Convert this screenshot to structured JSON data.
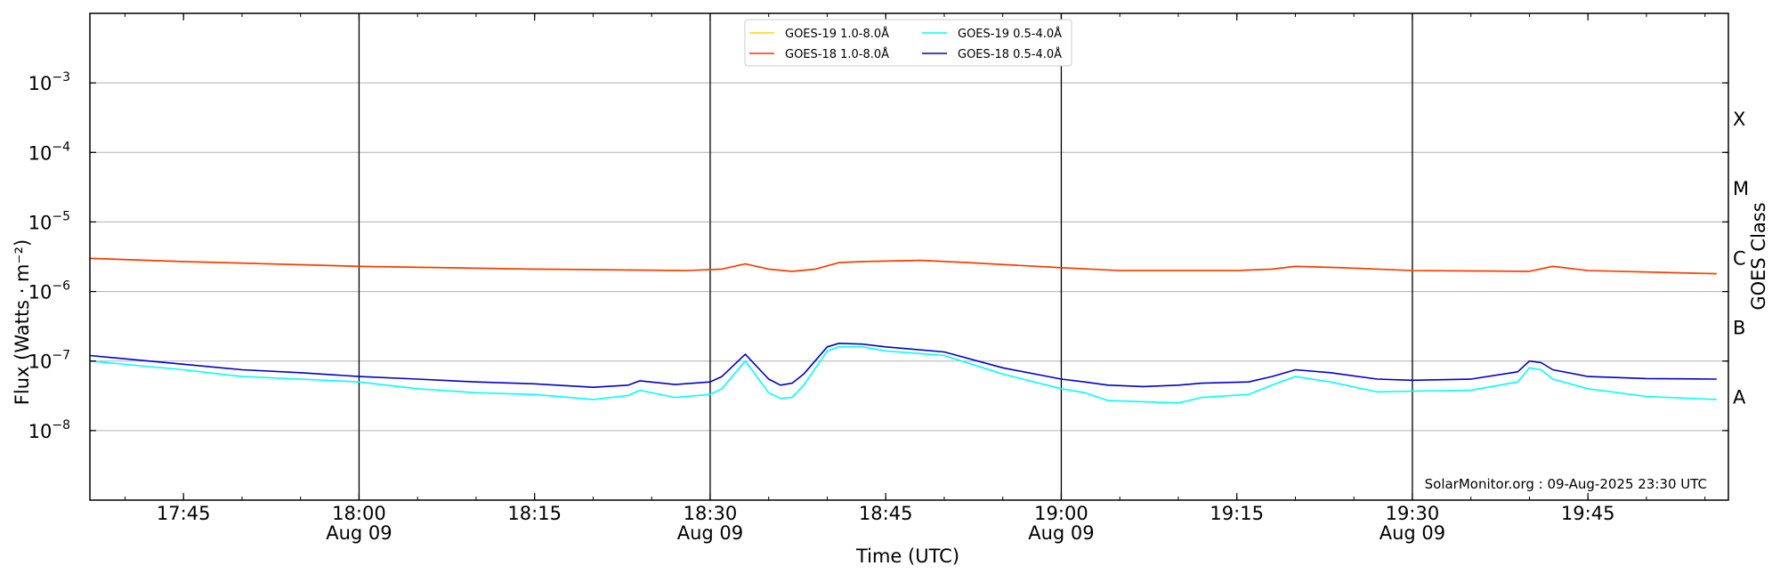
{
  "chart_data": {
    "type": "line",
    "xlabel": "Time (UTC)",
    "ylabel": "Flux (Watts · m⁻²)",
    "ylabel_right": "GOES Class",
    "yscale": "log",
    "ylim": [
      1e-09,
      0.01
    ],
    "xlim": [
      "17:37",
      "19:57"
    ],
    "x_ticks": [
      {
        "time": "17:45",
        "label": "17:45",
        "sublabel": ""
      },
      {
        "time": "18:00",
        "label": "18:00",
        "sublabel": "Aug 09"
      },
      {
        "time": "18:15",
        "label": "18:15",
        "sublabel": ""
      },
      {
        "time": "18:30",
        "label": "18:30",
        "sublabel": "Aug 09"
      },
      {
        "time": "18:45",
        "label": "18:45",
        "sublabel": ""
      },
      {
        "time": "19:00",
        "label": "19:00",
        "sublabel": "Aug 09"
      },
      {
        "time": "19:15",
        "label": "19:15",
        "sublabel": ""
      },
      {
        "time": "19:30",
        "label": "19:30",
        "sublabel": "Aug 09"
      },
      {
        "time": "19:45",
        "label": "19:45",
        "sublabel": ""
      }
    ],
    "y_ticks": [
      {
        "value": 0.001,
        "mantissa": "10",
        "exponent": "−3"
      },
      {
        "value": 0.0001,
        "mantissa": "10",
        "exponent": "−4"
      },
      {
        "value": 1e-05,
        "mantissa": "10",
        "exponent": "−5"
      },
      {
        "value": 1e-06,
        "mantissa": "10",
        "exponent": "−6"
      },
      {
        "value": 1e-07,
        "mantissa": "10",
        "exponent": "−7"
      },
      {
        "value": 1e-08,
        "mantissa": "10",
        "exponent": "−8"
      }
    ],
    "vertical_lines": [
      "18:00",
      "18:30",
      "19:00",
      "19:30"
    ],
    "goes_classes": [
      {
        "label": "X",
        "value": 0.0003
      },
      {
        "label": "M",
        "value": 3e-05
      },
      {
        "label": "C",
        "value": 3e-06
      },
      {
        "label": "B",
        "value": 3e-07
      },
      {
        "label": "A",
        "value": 3e-08
      }
    ],
    "grid": "horizontal",
    "legend_position": "top-center",
    "series": [
      {
        "name": "GOES-19 1.0-8.0Å",
        "color": "#ffd700",
        "points": [
          [
            "17:37",
            3e-06
          ],
          [
            "17:45",
            2.7e-06
          ],
          [
            "18:00",
            2.3e-06
          ],
          [
            "18:15",
            2.1e-06
          ],
          [
            "18:28",
            2e-06
          ],
          [
            "18:31",
            2.1e-06
          ],
          [
            "18:33",
            2.5e-06
          ],
          [
            "18:35",
            2.1e-06
          ],
          [
            "18:37",
            1.95e-06
          ],
          [
            "18:39",
            2.1e-06
          ],
          [
            "18:41",
            2.6e-06
          ],
          [
            "18:43",
            2.7e-06
          ],
          [
            "18:48",
            2.8e-06
          ],
          [
            "18:52",
            2.6e-06
          ],
          [
            "19:00",
            2.2e-06
          ],
          [
            "19:05",
            2e-06
          ],
          [
            "19:15",
            2e-06
          ],
          [
            "19:18",
            2.1e-06
          ],
          [
            "19:20",
            2.3e-06
          ],
          [
            "19:24",
            2.2e-06
          ],
          [
            "19:30",
            2e-06
          ],
          [
            "19:40",
            1.95e-06
          ],
          [
            "19:42",
            2.3e-06
          ],
          [
            "19:45",
            2e-06
          ],
          [
            "19:56",
            1.8e-06
          ]
        ]
      },
      {
        "name": "GOES-18 1.0-8.0Å",
        "color": "#ff3300",
        "points": [
          [
            "17:37",
            3e-06
          ],
          [
            "17:45",
            2.7e-06
          ],
          [
            "18:00",
            2.3e-06
          ],
          [
            "18:15",
            2.1e-06
          ],
          [
            "18:28",
            2e-06
          ],
          [
            "18:31",
            2.1e-06
          ],
          [
            "18:33",
            2.5e-06
          ],
          [
            "18:35",
            2.1e-06
          ],
          [
            "18:37",
            1.95e-06
          ],
          [
            "18:39",
            2.1e-06
          ],
          [
            "18:41",
            2.6e-06
          ],
          [
            "18:43",
            2.7e-06
          ],
          [
            "18:48",
            2.8e-06
          ],
          [
            "18:52",
            2.6e-06
          ],
          [
            "19:00",
            2.2e-06
          ],
          [
            "19:05",
            2e-06
          ],
          [
            "19:15",
            2e-06
          ],
          [
            "19:18",
            2.1e-06
          ],
          [
            "19:20",
            2.3e-06
          ],
          [
            "19:24",
            2.2e-06
          ],
          [
            "19:30",
            2e-06
          ],
          [
            "19:40",
            1.95e-06
          ],
          [
            "19:42",
            2.3e-06
          ],
          [
            "19:45",
            2e-06
          ],
          [
            "19:56",
            1.8e-06
          ]
        ]
      },
      {
        "name": "GOES-19 0.5-4.0Å",
        "color": "#00ffff",
        "points": [
          [
            "17:37",
            1e-07
          ],
          [
            "17:45",
            7.5e-08
          ],
          [
            "17:50",
            6e-08
          ],
          [
            "17:55",
            5.5e-08
          ],
          [
            "18:00",
            5e-08
          ],
          [
            "18:05",
            4e-08
          ],
          [
            "18:10",
            3.5e-08
          ],
          [
            "18:15",
            3.3e-08
          ],
          [
            "18:20",
            2.8e-08
          ],
          [
            "18:23",
            3.2e-08
          ],
          [
            "18:24",
            3.8e-08
          ],
          [
            "18:27",
            3e-08
          ],
          [
            "18:30",
            3.3e-08
          ],
          [
            "18:31",
            4e-08
          ],
          [
            "18:33",
            1e-07
          ],
          [
            "18:35",
            3.5e-08
          ],
          [
            "18:36",
            2.9e-08
          ],
          [
            "18:37",
            3e-08
          ],
          [
            "18:38",
            4.5e-08
          ],
          [
            "18:40",
            1.4e-07
          ],
          [
            "18:41",
            1.6e-07
          ],
          [
            "18:43",
            1.6e-07
          ],
          [
            "18:45",
            1.4e-07
          ],
          [
            "18:50",
            1.2e-07
          ],
          [
            "18:55",
            6.5e-08
          ],
          [
            "19:00",
            4e-08
          ],
          [
            "19:02",
            3.5e-08
          ],
          [
            "19:04",
            2.7e-08
          ],
          [
            "19:07",
            2.6e-08
          ],
          [
            "19:10",
            2.5e-08
          ],
          [
            "19:12",
            3e-08
          ],
          [
            "19:16",
            3.3e-08
          ],
          [
            "19:18",
            4.5e-08
          ],
          [
            "19:20",
            6e-08
          ],
          [
            "19:23",
            5e-08
          ],
          [
            "19:27",
            3.6e-08
          ],
          [
            "19:30",
            3.7e-08
          ],
          [
            "19:35",
            3.8e-08
          ],
          [
            "19:39",
            5e-08
          ],
          [
            "19:40",
            8e-08
          ],
          [
            "19:41",
            7.5e-08
          ],
          [
            "19:42",
            5.5e-08
          ],
          [
            "19:45",
            4e-08
          ],
          [
            "19:50",
            3.1e-08
          ],
          [
            "19:56",
            2.8e-08
          ]
        ]
      },
      {
        "name": "GOES-18 0.5-4.0Å",
        "color": "#0000cc",
        "points": [
          [
            "17:37",
            1.2e-07
          ],
          [
            "17:45",
            9e-08
          ],
          [
            "17:50",
            7.5e-08
          ],
          [
            "17:55",
            6.8e-08
          ],
          [
            "18:00",
            6e-08
          ],
          [
            "18:05",
            5.5e-08
          ],
          [
            "18:10",
            5e-08
          ],
          [
            "18:15",
            4.7e-08
          ],
          [
            "18:20",
            4.2e-08
          ],
          [
            "18:23",
            4.5e-08
          ],
          [
            "18:24",
            5.2e-08
          ],
          [
            "18:27",
            4.6e-08
          ],
          [
            "18:30",
            5e-08
          ],
          [
            "18:31",
            6e-08
          ],
          [
            "18:33",
            1.25e-07
          ],
          [
            "18:35",
            5.5e-08
          ],
          [
            "18:36",
            4.5e-08
          ],
          [
            "18:37",
            4.8e-08
          ],
          [
            "18:38",
            6.5e-08
          ],
          [
            "18:40",
            1.6e-07
          ],
          [
            "18:41",
            1.8e-07
          ],
          [
            "18:43",
            1.75e-07
          ],
          [
            "18:45",
            1.6e-07
          ],
          [
            "18:50",
            1.35e-07
          ],
          [
            "18:55",
            8e-08
          ],
          [
            "19:00",
            5.5e-08
          ],
          [
            "19:02",
            5e-08
          ],
          [
            "19:04",
            4.5e-08
          ],
          [
            "19:07",
            4.3e-08
          ],
          [
            "19:10",
            4.5e-08
          ],
          [
            "19:12",
            4.8e-08
          ],
          [
            "19:16",
            5e-08
          ],
          [
            "19:18",
            6e-08
          ],
          [
            "19:20",
            7.5e-08
          ],
          [
            "19:23",
            6.8e-08
          ],
          [
            "19:27",
            5.5e-08
          ],
          [
            "19:30",
            5.3e-08
          ],
          [
            "19:35",
            5.5e-08
          ],
          [
            "19:39",
            7e-08
          ],
          [
            "19:40",
            1e-07
          ],
          [
            "19:41",
            9.5e-08
          ],
          [
            "19:42",
            7.5e-08
          ],
          [
            "19:45",
            6e-08
          ],
          [
            "19:50",
            5.6e-08
          ],
          [
            "19:56",
            5.5e-08
          ]
        ]
      }
    ],
    "footer": "SolarMonitor.org : 09-Aug-2025 23:30 UTC"
  }
}
